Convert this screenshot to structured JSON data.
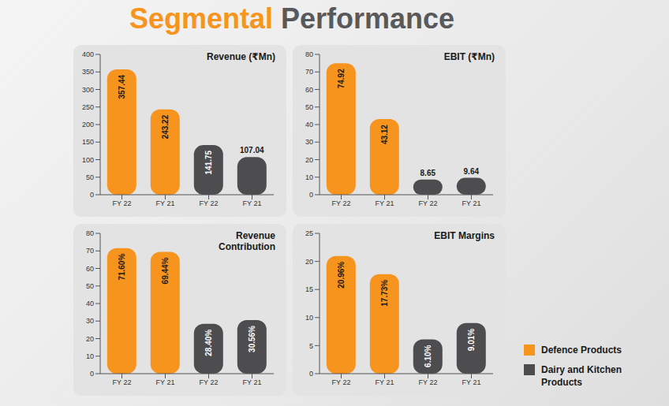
{
  "title": "Segmental Performance",
  "legend": "right",
  "chart_data": [
    {
      "type": "bar",
      "title": "Revenue (₹Mn)",
      "categories": [
        "FY 22",
        "FY 21",
        "FY 22",
        "FY 21"
      ],
      "series": [
        {
          "name": "Defence Products",
          "color": "#f7941d",
          "values": [
            357.44,
            243.22,
            null,
            null
          ]
        },
        {
          "name": "Dairy and Kitchen Products",
          "color": "#4d4d4f",
          "values": [
            null,
            null,
            141.75,
            107.04
          ]
        }
      ],
      "ylim": [
        0,
        400
      ],
      "yticks": [
        0,
        50,
        100,
        150,
        200,
        250,
        300,
        350,
        400
      ],
      "data_labels": true
    },
    {
      "type": "bar",
      "title": "EBIT (₹Mn)",
      "categories": [
        "FY 22",
        "FY 21",
        "FY 22",
        "FY 21"
      ],
      "series": [
        {
          "name": "Defence Products",
          "color": "#f7941d",
          "values": [
            74.92,
            43.12,
            null,
            null
          ]
        },
        {
          "name": "Dairy and Kitchen Products",
          "color": "#4d4d4f",
          "values": [
            null,
            null,
            8.65,
            9.64
          ]
        }
      ],
      "ylim": [
        0,
        80
      ],
      "yticks": [
        0,
        10,
        20,
        30,
        40,
        50,
        60,
        70,
        80
      ],
      "data_labels": true
    },
    {
      "type": "bar",
      "title": "Revenue Contribution",
      "categories": [
        "FY 22",
        "FY 21",
        "FY 22",
        "FY 21"
      ],
      "series": [
        {
          "name": "Defence Products",
          "color": "#f7941d",
          "values": [
            71.6,
            69.44,
            null,
            null
          ],
          "value_labels": [
            "71.60%",
            "69.44%",
            null,
            null
          ]
        },
        {
          "name": "Dairy and Kitchen Products",
          "color": "#4d4d4f",
          "values": [
            null,
            null,
            28.4,
            30.56
          ],
          "value_labels": [
            null,
            null,
            "28.40%",
            "30.56%"
          ]
        }
      ],
      "ylim": [
        0,
        80
      ],
      "yticks": [
        0,
        10,
        20,
        30,
        40,
        50,
        60,
        70,
        80
      ],
      "data_labels": true
    },
    {
      "type": "bar",
      "title": "EBIT Margins",
      "categories": [
        "FY 22",
        "FY 21",
        "FY 22",
        "FY 21"
      ],
      "series": [
        {
          "name": "Defence Products",
          "color": "#f7941d",
          "values": [
            20.96,
            17.73,
            null,
            null
          ],
          "value_labels": [
            "20.96%",
            "17.73%",
            null,
            null
          ]
        },
        {
          "name": "Dairy and Kitchen Products",
          "color": "#4d4d4f",
          "values": [
            null,
            null,
            6.1,
            9.01
          ],
          "value_labels": [
            null,
            null,
            "6.10%",
            "9.01%"
          ]
        }
      ],
      "ylim": [
        0,
        25
      ],
      "yticks": [
        0,
        5,
        10,
        15,
        20,
        25
      ],
      "data_labels": true
    }
  ]
}
